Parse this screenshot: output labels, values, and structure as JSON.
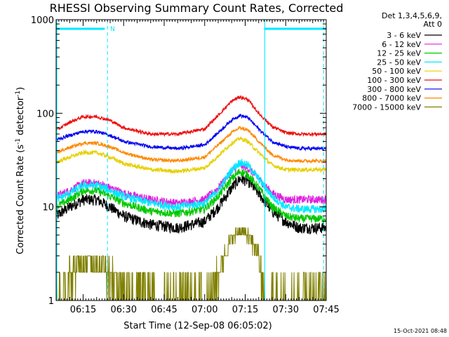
{
  "chart_data": {
    "type": "line",
    "title": "RHESSI Observing Summary Count Rates, Corrected",
    "xlabel": "Start Time (12-Sep-08 06:05:02)",
    "ylabel_main": "Corrected Count Rate (s",
    "ylabel_sup1": "-1",
    "ylabel_mid": " detector",
    "ylabel_sup2": "-1",
    "ylabel_end": ")",
    "y_scale": "log",
    "ylim": [
      1,
      1000
    ],
    "xlim": [
      "06:05",
      "07:45"
    ],
    "x_ticks": [
      "06:15",
      "06:30",
      "06:45",
      "07:00",
      "07:15",
      "07:30",
      "07:45"
    ],
    "y_ticks": [
      "1",
      "10",
      "100",
      "1000"
    ],
    "legend_header": [
      "Det 1,3,4,5,6,9,",
      "Att 0"
    ],
    "timestamp": "15-Oct-2021 08:48",
    "flag_marker": "N",
    "night_intervals": [
      [
        "06:05",
        "06:23"
      ],
      [
        "07:22",
        "07:45"
      ]
    ],
    "saa_lines": [
      "06:24",
      "07:44"
    ],
    "series": [
      {
        "name": "3 - 6 keV",
        "color": "#000000",
        "x": [
          "06:05",
          "06:10",
          "06:15",
          "06:20",
          "06:25",
          "06:30",
          "06:40",
          "06:50",
          "07:00",
          "07:05",
          "07:10",
          "07:13",
          "07:16",
          "07:20",
          "07:25",
          "07:30",
          "07:35",
          "07:44"
        ],
        "y": [
          8,
          10,
          12,
          12,
          10,
          8,
          6.5,
          6,
          7,
          10,
          16,
          20,
          19,
          14,
          9,
          7,
          6,
          6
        ]
      },
      {
        "name": "6 - 12 keV",
        "color": "#e020e0",
        "x": [
          "06:05",
          "06:10",
          "06:15",
          "06:20",
          "06:25",
          "06:30",
          "06:40",
          "06:50",
          "07:00",
          "07:05",
          "07:10",
          "07:13",
          "07:16",
          "07:20",
          "07:25",
          "07:30",
          "07:35",
          "07:44"
        ],
        "y": [
          13,
          15,
          18,
          18,
          16,
          14,
          12,
          11,
          12,
          16,
          24,
          28,
          26,
          20,
          14,
          12,
          12,
          12
        ]
      },
      {
        "name": "12 - 25 keV",
        "color": "#00c800",
        "x": [
          "06:05",
          "06:10",
          "06:15",
          "06:20",
          "06:25",
          "06:30",
          "06:40",
          "06:50",
          "07:00",
          "07:05",
          "07:10",
          "07:13",
          "07:16",
          "07:20",
          "07:25",
          "07:30",
          "07:35",
          "07:44"
        ],
        "y": [
          10,
          12,
          15,
          15,
          13,
          11,
          9,
          8.5,
          9.5,
          13,
          20,
          24,
          22,
          16,
          10,
          8,
          7.5,
          7.5
        ]
      },
      {
        "name": "25 - 50 keV",
        "color": "#00e8ff",
        "x": [
          "06:05",
          "06:10",
          "06:15",
          "06:20",
          "06:25",
          "06:30",
          "06:40",
          "06:50",
          "07:00",
          "07:05",
          "07:10",
          "07:13",
          "07:16",
          "07:20",
          "07:25",
          "07:30",
          "07:35",
          "07:44"
        ],
        "y": [
          12,
          14,
          17,
          17,
          15,
          13,
          11,
          10,
          11,
          15,
          25,
          30,
          28,
          20,
          13,
          10,
          9.5,
          9.5
        ]
      },
      {
        "name": "50 - 100 keV",
        "color": "#e6d000",
        "x": [
          "06:05",
          "06:10",
          "06:15",
          "06:20",
          "06:25",
          "06:30",
          "06:40",
          "06:50",
          "07:00",
          "07:05",
          "07:10",
          "07:13",
          "07:16",
          "07:20",
          "07:25",
          "07:30",
          "07:35",
          "07:44"
        ],
        "y": [
          30,
          34,
          38,
          38,
          34,
          29,
          25,
          24,
          26,
          35,
          48,
          54,
          50,
          38,
          28,
          25,
          25,
          25
        ]
      },
      {
        "name": "100 - 300 keV",
        "color": "#ee1010",
        "x": [
          "06:05",
          "06:10",
          "06:15",
          "06:20",
          "06:25",
          "06:30",
          "06:40",
          "06:50",
          "07:00",
          "07:05",
          "07:10",
          "07:13",
          "07:16",
          "07:20",
          "07:25",
          "07:30",
          "07:35",
          "07:44"
        ],
        "y": [
          66,
          80,
          92,
          92,
          84,
          70,
          60,
          60,
          68,
          95,
          135,
          150,
          140,
          100,
          72,
          62,
          60,
          60
        ]
      },
      {
        "name": "300 - 800 keV",
        "color": "#0000ee",
        "x": [
          "06:05",
          "06:10",
          "06:15",
          "06:20",
          "06:25",
          "06:30",
          "06:40",
          "06:50",
          "07:00",
          "07:05",
          "07:10",
          "07:13",
          "07:16",
          "07:20",
          "07:25",
          "07:30",
          "07:35",
          "07:44"
        ],
        "y": [
          52,
          58,
          64,
          64,
          58,
          50,
          44,
          42,
          46,
          62,
          85,
          95,
          90,
          68,
          50,
          44,
          42,
          42
        ]
      },
      {
        "name": "800 - 7000 keV",
        "color": "#ff8800",
        "x": [
          "06:05",
          "06:10",
          "06:15",
          "06:20",
          "06:25",
          "06:30",
          "06:40",
          "06:50",
          "07:00",
          "07:05",
          "07:10",
          "07:13",
          "07:16",
          "07:20",
          "07:25",
          "07:30",
          "07:35",
          "07:44"
        ],
        "y": [
          38,
          43,
          48,
          48,
          44,
          38,
          32,
          31,
          34,
          46,
          62,
          70,
          66,
          50,
          36,
          32,
          31,
          31
        ]
      },
      {
        "name": "7000 - 15000 keV",
        "color": "#808000",
        "x": [
          "06:05",
          "06:09",
          "06:10",
          "06:15",
          "06:20",
          "06:25",
          "06:30",
          "06:40",
          "06:50",
          "07:00",
          "07:05",
          "07:08",
          "07:10",
          "07:13",
          "07:16",
          "07:20",
          "07:22",
          "07:25",
          "07:30",
          "07:35",
          "07:44"
        ],
        "y": [
          1,
          1,
          2,
          2.7,
          2.7,
          2,
          1.4,
          1,
          1,
          1,
          2,
          3.5,
          4.5,
          5.5,
          5,
          3,
          1,
          1,
          1,
          1,
          1
        ]
      }
    ]
  }
}
